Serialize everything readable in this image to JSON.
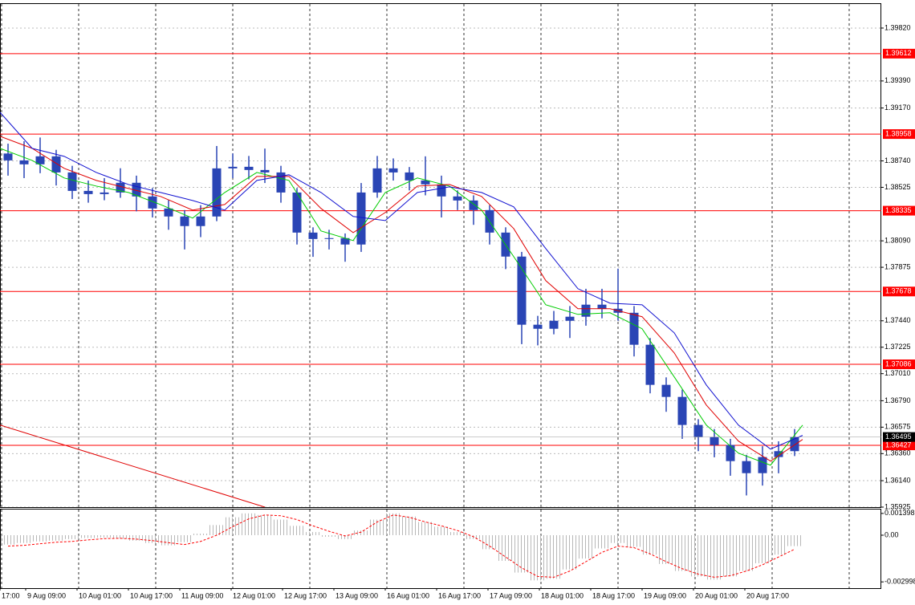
{
  "chart_data": [
    {
      "type": "candlestick",
      "x": [
        2.5,
        7.5,
        12.5,
        17.5,
        22.5,
        27.5,
        32.5,
        37.5,
        42.5,
        47.5,
        52.5,
        57.5,
        62.5,
        67.5,
        72.5,
        77.5,
        82.5,
        87.5,
        92.5,
        97.5,
        102.5,
        107.5,
        112.5,
        117.5,
        122.5,
        127.5,
        132.5,
        137.5,
        142.5,
        147.5,
        152.5,
        157.5,
        162.5,
        167.5,
        172.5,
        177.5,
        182.5,
        187.5,
        192.5,
        197.5,
        202.5,
        207.5,
        212.5,
        217.5,
        222.5,
        227.5,
        232.5,
        237.5,
        242.5,
        247.5
      ],
      "open": [
        1.388,
        1.38744,
        1.38712,
        1.38777,
        1.38646,
        1.38496,
        1.3847,
        1.38483,
        1.38562,
        1.38451,
        1.38353,
        1.38288,
        1.3821,
        1.38288,
        1.38679,
        1.38692,
        1.38666,
        1.38646,
        1.38483,
        1.38157,
        1.38105,
        1.38112,
        1.3806,
        1.38483,
        1.38679,
        1.38646,
        1.38581,
        1.38549,
        1.38451,
        1.38418,
        1.3834,
        1.38157,
        1.37962,
        1.37408,
        1.37375,
        1.3744,
        1.37473,
        1.37571,
        1.37538,
        1.37505,
        1.37245,
        1.36919,
        1.36821,
        1.36593,
        1.36495,
        1.3643,
        1.36299,
        1.36201,
        1.36332,
        1.3638
      ],
      "high": [
        1.3888,
        1.389,
        1.3893,
        1.3883,
        1.387,
        1.3858,
        1.386,
        1.3868,
        1.3862,
        1.3852,
        1.3842,
        1.3834,
        1.3838,
        1.38861,
        1.388,
        1.3878,
        1.3884,
        1.387,
        1.3852,
        1.382,
        1.3818,
        1.3815,
        1.3856,
        1.3878,
        1.3876,
        1.3869,
        1.38777,
        1.3862,
        1.385,
        1.3846,
        1.3838,
        1.382,
        1.38,
        1.3748,
        1.3752,
        1.3756,
        1.377,
        1.377,
        1.37864,
        1.3756,
        1.373,
        1.3698,
        1.3688,
        1.3664,
        1.3656,
        1.3648,
        1.3635,
        1.3642,
        1.3646,
        1.3656
      ],
      "low": [
        1.3862,
        1.386,
        1.3864,
        1.3854,
        1.3843,
        1.384,
        1.3842,
        1.3844,
        1.3833,
        1.3828,
        1.3818,
        1.3802,
        1.3812,
        1.3825,
        1.386,
        1.3859,
        1.3856,
        1.384,
        1.3806,
        1.3796,
        1.3802,
        1.3792,
        1.38,
        1.3844,
        1.3858,
        1.385,
        1.3846,
        1.3828,
        1.3834,
        1.3822,
        1.3806,
        1.3786,
        1.3725,
        1.3724,
        1.3733,
        1.373,
        1.374,
        1.3746,
        1.3744,
        1.3715,
        1.3685,
        1.367,
        1.3648,
        1.3638,
        1.3633,
        1.3618,
        1.3602,
        1.361,
        1.362,
        1.3634
      ],
      "close": [
        1.38744,
        1.38712,
        1.38777,
        1.38646,
        1.38496,
        1.3847,
        1.38483,
        1.38562,
        1.38451,
        1.38353,
        1.38288,
        1.3821,
        1.38288,
        1.38679,
        1.38692,
        1.38666,
        1.38646,
        1.38483,
        1.38157,
        1.38105,
        1.38112,
        1.3806,
        1.38483,
        1.38679,
        1.38646,
        1.38581,
        1.38549,
        1.38451,
        1.38418,
        1.3834,
        1.38157,
        1.37962,
        1.37408,
        1.37375,
        1.3744,
        1.37473,
        1.37571,
        1.37538,
        1.37505,
        1.37245,
        1.36919,
        1.36821,
        1.36593,
        1.36495,
        1.3643,
        1.36299,
        1.36201,
        1.36332,
        1.3638,
        1.36495
      ],
      "color": "#2a45b5",
      "xlim": [
        0,
        274.5
      ],
      "ylim": [
        1.35925,
        1.40022
      ],
      "yticks": [
        {
          "value": 1.3982,
          "label": "1.39820"
        },
        {
          "value": 1.3939,
          "label": "1.39390"
        },
        {
          "value": 1.3917,
          "label": "1.39170"
        },
        {
          "value": 1.3874,
          "label": "1.38740"
        },
        1.38525,
        {
          "value": 1.3809,
          "label": "1.38090"
        },
        1.37875,
        {
          "value": 1.3744,
          "label": "1.37440"
        },
        1.37225,
        {
          "value": 1.3701,
          "label": "1.37010"
        },
        {
          "value": 1.3679,
          "label": "1.36790"
        },
        1.36575,
        {
          "value": 1.3636,
          "label": "1.36360"
        },
        {
          "value": 1.3614,
          "label": "1.36140"
        },
        1.35925
      ],
      "grid": true,
      "moving_averages": [
        {
          "color": "#00cc00",
          "x": [
            0,
            10,
            20,
            30,
            40,
            50,
            60,
            70,
            80,
            90,
            100,
            110,
            120,
            130,
            140,
            150,
            160,
            170,
            180,
            190,
            200,
            210,
            220,
            230,
            240,
            250
          ],
          "values": [
            1.38842,
            1.38744,
            1.38601,
            1.38535,
            1.38483,
            1.38385,
            1.38275,
            1.38483,
            1.38646,
            1.38581,
            1.3817,
            1.38092,
            1.38483,
            1.38601,
            1.38535,
            1.3834,
            1.37962,
            1.3757,
            1.37492,
            1.37505,
            1.37375,
            1.36984,
            1.36592,
            1.36364,
            1.36266,
            1.36592
          ]
        },
        {
          "color": "#e00000",
          "x": [
            0,
            10,
            20,
            30,
            40,
            50,
            60,
            70,
            80,
            90,
            100,
            110,
            120,
            130,
            140,
            150,
            160,
            170,
            180,
            190,
            200,
            210,
            220,
            230,
            240,
            250
          ],
          "values": [
            1.3894,
            1.38842,
            1.38679,
            1.38581,
            1.38516,
            1.38451,
            1.3834,
            1.38385,
            1.38614,
            1.38614,
            1.38353,
            1.38157,
            1.3832,
            1.38535,
            1.38548,
            1.38451,
            1.3819,
            1.37766,
            1.37538,
            1.37538,
            1.37473,
            1.37179,
            1.36755,
            1.36462,
            1.36299,
            1.36475
          ]
        },
        {
          "color": "#1010d0",
          "x": [
            0,
            10,
            20,
            30,
            40,
            50,
            60,
            70,
            80,
            90,
            100,
            110,
            120,
            130,
            140,
            150,
            160,
            170,
            180,
            190,
            200,
            210,
            220,
            230,
            240,
            250
          ],
          "values": [
            1.39135,
            1.38842,
            1.38777,
            1.38646,
            1.38548,
            1.38483,
            1.38418,
            1.3834,
            1.38581,
            1.38627,
            1.38483,
            1.38288,
            1.38255,
            1.38483,
            1.38529,
            1.38483,
            1.38366,
            1.38027,
            1.37701,
            1.37583,
            1.3757,
            1.37342,
            1.36918,
            1.36592,
            1.36397,
            1.36508
          ]
        }
      ],
      "levels": [
        1.39612,
        1.38958,
        1.38335,
        1.37678,
        1.37086,
        1.36427
      ],
      "level_color": "#ff0000",
      "current_price": 1.36495,
      "trendline": {
        "x": [
          0,
          82.5
        ],
        "values": [
          1.36592,
          1.35925
        ],
        "color": "#e00000"
      }
    },
    {
      "type": "macd",
      "x": [
        2.5,
        7.5,
        12.5,
        17.5,
        22.5,
        27.5,
        32.5,
        37.5,
        42.5,
        47.5,
        52.5,
        57.5,
        62.5,
        67.5,
        72.5,
        77.5,
        82.5,
        87.5,
        92.5,
        97.5,
        102.5,
        107.5,
        112.5,
        117.5,
        122.5,
        127.5,
        132.5,
        137.5,
        142.5,
        147.5,
        152.5,
        157.5,
        162.5,
        167.5,
        172.5,
        177.5,
        182.5,
        187.5,
        192.5,
        197.5,
        202.5,
        207.5,
        212.5,
        217.5,
        222.5,
        227.5,
        232.5,
        237.5,
        242.5,
        247.5
      ],
      "histogram": [
        -0.0006,
        -0.0005,
        -0.0004,
        -0.00035,
        -0.00025,
        -0.00018,
        -0.00015,
        -0.00022,
        -0.00035,
        -0.0005,
        -0.00065,
        -0.00045,
        0.0001,
        0.00065,
        0.00115,
        0.0014,
        0.0013,
        0.001,
        0.0006,
        0.0002,
        -0.0001,
        -0.00025,
        0.0003,
        0.001,
        0.0014,
        0.0012,
        0.00085,
        0.00055,
        0.0002,
        -0.00025,
        -0.0009,
        -0.00165,
        -0.0024,
        -0.0029,
        -0.0028,
        -0.0022,
        -0.0015,
        -0.00085,
        -0.0005,
        -0.00075,
        -0.00125,
        -0.00185,
        -0.0023,
        -0.00265,
        -0.00285,
        -0.00265,
        -0.0023,
        -0.0018,
        -0.00125,
        -0.0007
      ],
      "signal": [
        -0.0007,
        -0.00065,
        -0.00055,
        -0.00045,
        -0.0004,
        -0.0003,
        -0.00022,
        -0.0002,
        -0.00025,
        -0.00035,
        -0.00048,
        -0.0006,
        -0.0004,
        0,
        0.00055,
        0.00105,
        0.0013,
        0.00125,
        0.001,
        0.0006,
        0.00025,
        -5e-05,
        0.0002,
        0.00085,
        0.0013,
        0.00115,
        0.00085,
        0.0006,
        0.0003,
        -0.0001,
        -0.0007,
        -0.0014,
        -0.0021,
        -0.00265,
        -0.0027,
        -0.0023,
        -0.0017,
        -0.0011,
        -0.0007,
        -0.0008,
        -0.0012,
        -0.0017,
        -0.00215,
        -0.0025,
        -0.0027,
        -0.0026,
        -0.0023,
        -0.0019,
        -0.0014,
        -0.0009
      ],
      "histogram_color": "#b8b8b8",
      "signal_color": "#ff0000",
      "xlim": [
        0,
        274.5
      ],
      "ylim": [
        -0.0034,
        0.0017
      ],
      "yticks": [
        0.001398,
        {
          "value": 0,
          "label": "0.00"
        },
        -0.002998
      ],
      "xticks": [
        {
          "value": 0,
          "label": "17:00"
        },
        {
          "value": 8,
          "label": "9 Aug 09:00"
        },
        {
          "value": 24,
          "label": "10 Aug 01:00"
        },
        {
          "value": 40,
          "label": "10 Aug 17:00"
        },
        {
          "value": 56,
          "label": "11 Aug 09:00"
        },
        {
          "value": 72,
          "label": "12 Aug 01:00"
        },
        {
          "value": 88,
          "label": "12 Aug 17:00"
        },
        {
          "value": 104,
          "label": "13 Aug 09:00"
        },
        {
          "value": 120,
          "label": "16 Aug 01:00"
        },
        {
          "value": 136,
          "label": "16 Aug 17:00"
        },
        {
          "value": 152,
          "label": "17 Aug 09:00"
        },
        {
          "value": 168,
          "label": "18 Aug 01:00"
        },
        {
          "value": 184,
          "label": "18 Aug 17:00"
        },
        {
          "value": 200,
          "label": "19 Aug 09:00"
        },
        {
          "value": 216,
          "label": "20 Aug 01:00"
        },
        {
          "value": 232,
          "label": "20 Aug 17:00"
        }
      ]
    }
  ]
}
